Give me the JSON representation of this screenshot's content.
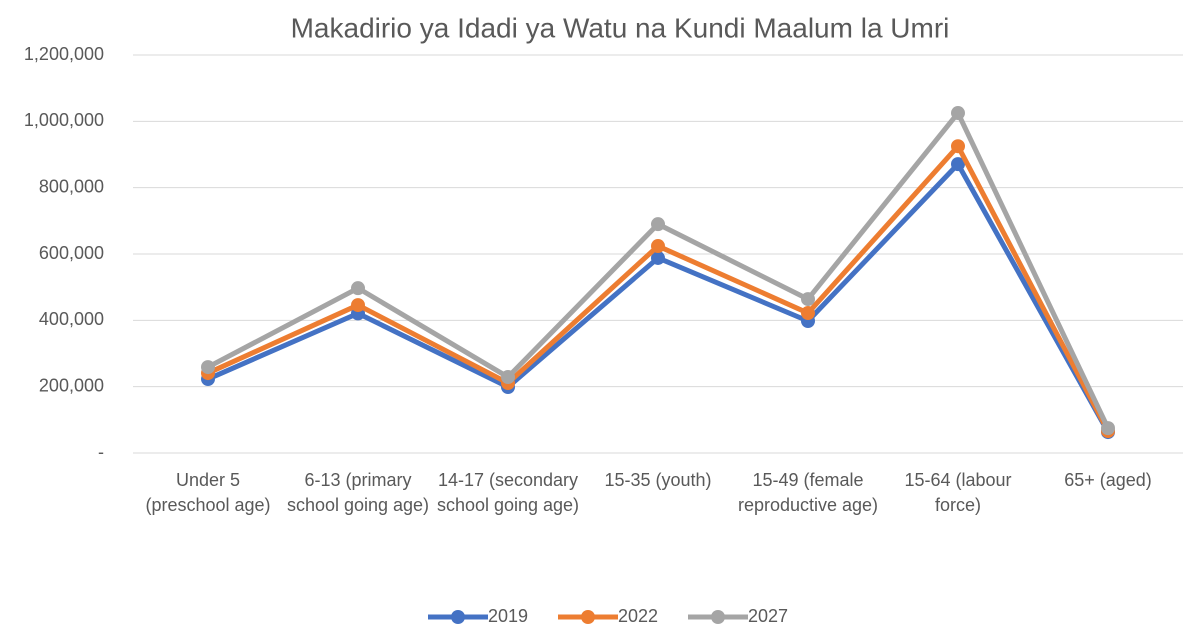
{
  "chart_data": {
    "type": "line",
    "title": "Makadirio ya Idadi ya Watu na Kundi Maalum la Umri",
    "categories": [
      "Under 5 (preschool age)",
      "6-13 (primary school going age)",
      "14-17 (secondary school going age)",
      "15-35 (youth)",
      "15-49 (female reproductive age)",
      "15-64 (labour force)",
      "65+ (aged)"
    ],
    "series": [
      {
        "name": "2019",
        "color": "#4472c4",
        "values": [
          223000,
          421000,
          199000,
          588000,
          398000,
          871000,
          63000
        ]
      },
      {
        "name": "2022",
        "color": "#ed7d31",
        "values": [
          241000,
          446000,
          211000,
          624000,
          422000,
          925000,
          66000
        ]
      },
      {
        "name": "2027",
        "color": "#a5a5a5",
        "values": [
          259000,
          497000,
          229000,
          690000,
          464000,
          1025000,
          75000
        ]
      }
    ],
    "ylim": [
      0,
      1200000
    ],
    "yticks": [
      {
        "value": 0,
        "label": "-"
      },
      {
        "value": 200000,
        "label": "200,000"
      },
      {
        "value": 400000,
        "label": "400,000"
      },
      {
        "value": 600000,
        "label": "600,000"
      },
      {
        "value": 800000,
        "label": "800,000"
      },
      {
        "value": 1000000,
        "label": "1,000,000"
      },
      {
        "value": 1200000,
        "label": "1,200,000"
      }
    ],
    "grid": true,
    "legend": "bottom"
  }
}
